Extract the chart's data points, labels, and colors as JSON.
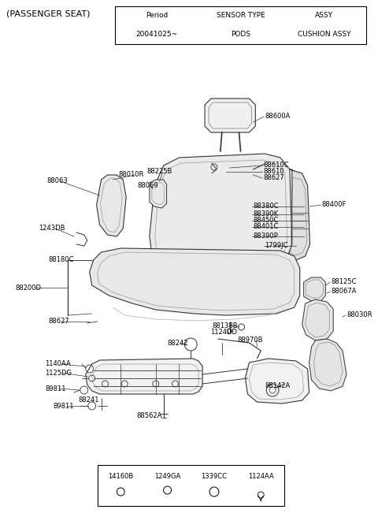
{
  "bg_color": "#ffffff",
  "title_text": "(PASSENGER SEAT)",
  "top_table": {
    "headers": [
      "Period",
      "SENSOR TYPE",
      "ASSY"
    ],
    "row": [
      "20041025~",
      "PODS",
      "CUSHION ASSY"
    ]
  },
  "bottom_table": {
    "labels": [
      "14160B",
      "1249GA",
      "1339CC",
      "1124AA"
    ]
  },
  "line_color": "#333333",
  "label_color": "#000000"
}
